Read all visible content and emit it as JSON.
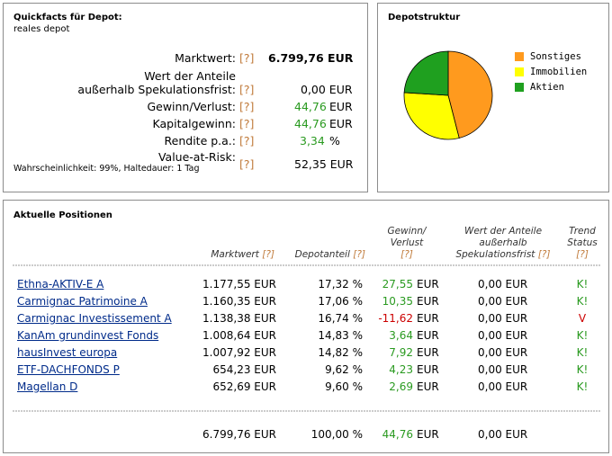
{
  "quickfacts": {
    "title": "Quickfacts für Depot:",
    "depot_name": "reales depot",
    "help": "[?]",
    "rows": {
      "marktwert": {
        "label": "Marktwert:",
        "value": "6.799,76 EUR"
      },
      "anteile_line1": "Wert der Anteile",
      "anteile_line2": "außerhalb Spekulationsfrist:",
      "anteile_value": "0,00 EUR",
      "gewinn": {
        "label": "Gewinn/Verlust:",
        "value": "44,76",
        "unit": "EUR"
      },
      "kapitalgewinn": {
        "label": "Kapitalgewinn:",
        "value": "44,76",
        "unit": "EUR"
      },
      "rendite": {
        "label": "Rendite p.a.:",
        "value": "3,34",
        "unit": "%"
      },
      "var": {
        "label": "Value-at-Risk:",
        "note": "Wahrscheinlichkeit: 99%, Haltedauer: 1 Tag",
        "value": "52,35 EUR"
      }
    }
  },
  "depotstruktur": {
    "title": "Depotstruktur",
    "colors": {
      "sonstiges": "#ff9a1e",
      "immobilien": "#ffff00",
      "aktien": "#1fa01f"
    },
    "legend": [
      {
        "label": "Sonstiges",
        "color": "#ff9a1e"
      },
      {
        "label": "Immobilien",
        "color": "#ffff00"
      },
      {
        "label": "Aktien",
        "color": "#1fa01f"
      }
    ]
  },
  "chart_data": {
    "type": "pie",
    "labels": [
      "Sonstiges",
      "Immobilien",
      "Aktien"
    ],
    "values": [
      46,
      30,
      24
    ],
    "colors": [
      "#ff9a1e",
      "#ffff00",
      "#1fa01f"
    ]
  },
  "positions": {
    "title": "Aktuelle Positionen",
    "help": "[?]",
    "headers": {
      "marktwert": "Marktwert",
      "depotanteil": "Depotanteil",
      "gewinn_l1": "Gewinn/",
      "gewinn_l2": "Verlust",
      "anteile_l1": "Wert der Anteile",
      "anteile_l2": "außerhalb",
      "anteile_l3": "Spekulationsfrist",
      "trend_l1": "Trend",
      "trend_l2": "Status"
    },
    "rows": [
      {
        "name": "Ethna-AKTIV-E A",
        "marktwert": "1.177,55 EUR",
        "anteil": "17,32 %",
        "gewinn": "27,55",
        "gewinn_unit": "EUR",
        "anteile": "0,00 EUR",
        "trend": "K!",
        "neg": false
      },
      {
        "name": "Carmignac Patrimoine A",
        "marktwert": "1.160,35 EUR",
        "anteil": "17,06 %",
        "gewinn": "10,35",
        "gewinn_unit": "EUR",
        "anteile": "0,00 EUR",
        "trend": "K!",
        "neg": false
      },
      {
        "name": "Carmignac Investissement A",
        "marktwert": "1.138,38 EUR",
        "anteil": "16,74 %",
        "gewinn": "-11,62",
        "gewinn_unit": "EUR",
        "anteile": "0,00 EUR",
        "trend": "V",
        "neg": true
      },
      {
        "name": "KanAm grundinvest Fonds",
        "marktwert": "1.008,64 EUR",
        "anteil": "14,83 %",
        "gewinn": "3,64",
        "gewinn_unit": "EUR",
        "anteile": "0,00 EUR",
        "trend": "K!",
        "neg": false
      },
      {
        "name": "hausInvest europa",
        "marktwert": "1.007,92 EUR",
        "anteil": "14,82 %",
        "gewinn": "7,92",
        "gewinn_unit": "EUR",
        "anteile": "0,00 EUR",
        "trend": "K!",
        "neg": false
      },
      {
        "name": "ETF-DACHFONDS P",
        "marktwert": "654,23 EUR",
        "anteil": "9,62 %",
        "gewinn": "4,23",
        "gewinn_unit": "EUR",
        "anteile": "0,00 EUR",
        "trend": "K!",
        "neg": false
      },
      {
        "name": "Magellan D",
        "marktwert": "652,69 EUR",
        "anteil": "9,60 %",
        "gewinn": "2,69",
        "gewinn_unit": "EUR",
        "anteile": "0,00 EUR",
        "trend": "K!",
        "neg": false
      }
    ],
    "totals": {
      "marktwert": "6.799,76 EUR",
      "anteil": "100,00 %",
      "gewinn": "44,76",
      "gewinn_unit": "EUR",
      "anteile": "0,00 EUR"
    }
  }
}
